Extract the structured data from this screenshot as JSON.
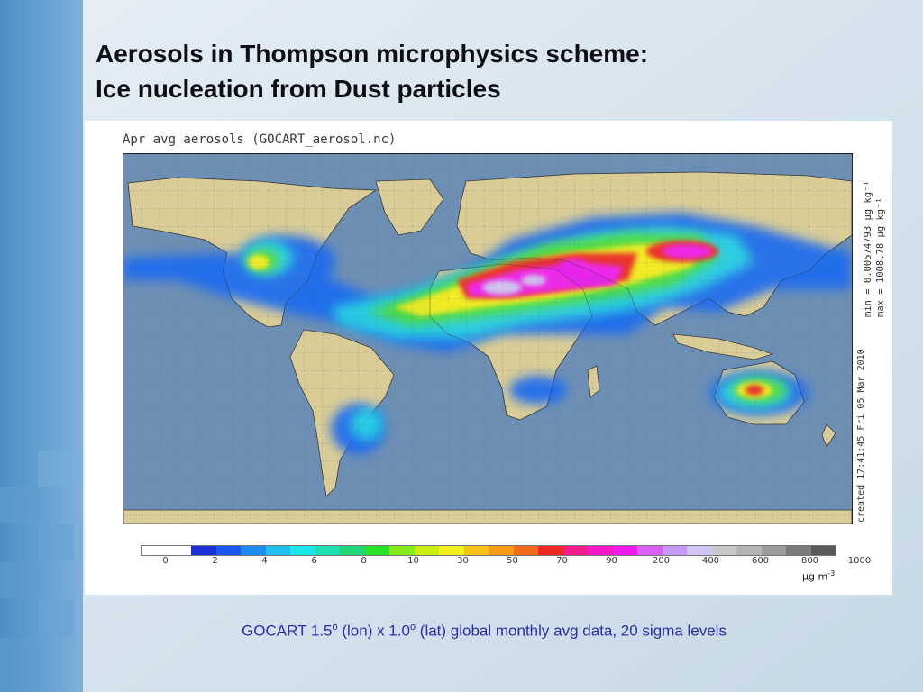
{
  "slide": {
    "title_line1": "Aerosols in Thompson microphysics scheme:",
    "title_line2": "Ice nucleation from Dust particles",
    "caption_part1": "GOCART 1.5",
    "caption_sup1": "o",
    "caption_part2": " (lon) x 1.0",
    "caption_sup2": "o",
    "caption_part3": " (lat) global monthly avg data, 20 sigma levels"
  },
  "map": {
    "title": "Apr avg aerosols (GOCART_aerosol.nc)",
    "stats_min": "min = 0.00574793 µg kg⁻¹",
    "stats_max": "max = 1008.78 µg kg⁻¹",
    "created": "created 17:41:45 Fri 05 Mar 2010",
    "ocean_color": "#6e8fb4",
    "land_color": "#d9cc96"
  },
  "colorbar": {
    "colors": [
      "#ffffff",
      "#ffffff",
      "#1c2fd6",
      "#1a58ec",
      "#1f8cf2",
      "#20bff0",
      "#19e6e8",
      "#1de0b0",
      "#22d678",
      "#28e22a",
      "#84ea18",
      "#c8ef10",
      "#f2f01a",
      "#f6c01a",
      "#f69a18",
      "#f26a1a",
      "#ec2a22",
      "#f21c8a",
      "#f41ac8",
      "#f01af0",
      "#d860f2",
      "#c69af4",
      "#cfc4f4",
      "#c8c8c8",
      "#b4b4b4",
      "#9c9c9c",
      "#7a7a7a",
      "#5a5a5a"
    ],
    "tick_labels": [
      "0",
      "2",
      "4",
      "6",
      "8",
      "10",
      "30",
      "50",
      "70",
      "90",
      "200",
      "400",
      "600",
      "800",
      "1000"
    ],
    "unit_base": "µg m",
    "unit_exp": "-3"
  }
}
